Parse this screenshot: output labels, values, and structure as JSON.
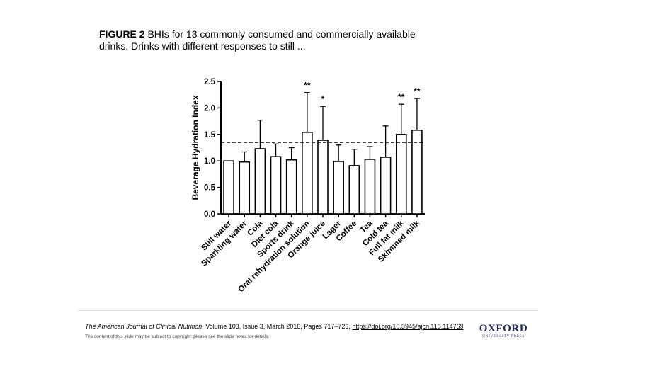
{
  "caption": {
    "label": "FIGURE 2",
    "text": " BHIs for 13 commonly consumed and commercially available drinks. Drinks with different responses to still ..."
  },
  "chart_data": {
    "type": "bar",
    "ylabel": "Beverage Hydration Index",
    "ylim": [
      0,
      2.5
    ],
    "yticks": [
      "0.0",
      "0.5",
      "1.0",
      "1.5",
      "2.0",
      "2.5"
    ],
    "reference_line": 1.35,
    "categories": [
      "Still water",
      "Sparkling water",
      "Cola",
      "Diet cola",
      "Sports drink",
      "Oral rehydration solution",
      "Orange juice",
      "Lager",
      "Coffee",
      "Tea",
      "Cold tea",
      "Full fat milk",
      "Skimmed milk"
    ],
    "values": [
      1.0,
      0.98,
      1.23,
      1.08,
      1.02,
      1.54,
      1.39,
      0.99,
      0.91,
      1.03,
      1.07,
      1.5,
      1.58
    ],
    "errors": [
      0.0,
      0.19,
      0.54,
      0.24,
      0.23,
      0.75,
      0.64,
      0.31,
      0.31,
      0.24,
      0.59,
      0.57,
      0.6
    ],
    "significance": [
      "",
      "",
      "",
      "",
      "",
      "**",
      "*",
      "",
      "",
      "",
      "",
      "**",
      "**"
    ],
    "bar_color": "#ffffff",
    "edge_color": "#000000"
  },
  "footer": {
    "journal": "The American Journal of Clinical Nutrition",
    "details": ", Volume 103, Issue 3, March 2016, Pages 717–723, ",
    "doi": "https://doi.org/10.3945/ajcn.115.114769",
    "notice": "The content of this slide may be subject to copyright: please see the slide notes for details.",
    "logo_main": "OXFORD",
    "logo_sub": "UNIVERSITY PRESS"
  }
}
